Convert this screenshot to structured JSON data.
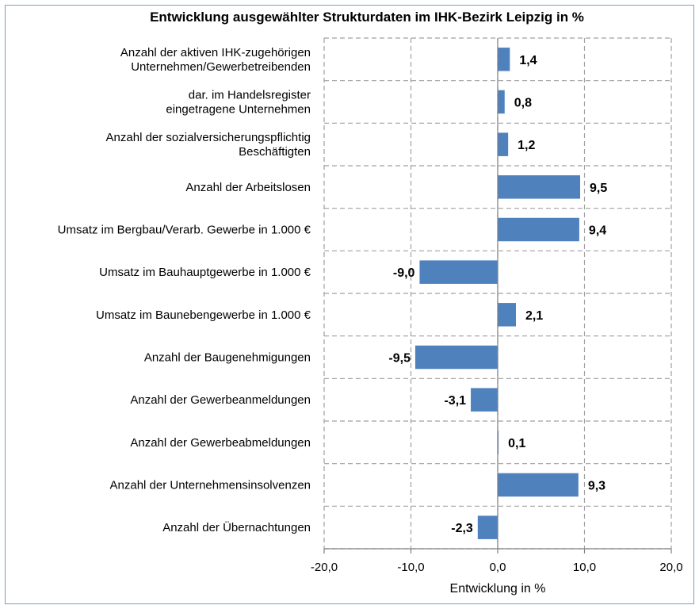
{
  "chart_data": {
    "type": "bar",
    "orientation": "horizontal",
    "title": "Entwicklung ausgewählter Strukturdaten im IHK-Bezirk Leipzig in %",
    "xlabel": "Entwicklung in %",
    "ylabel": "",
    "xlim": [
      -20,
      20
    ],
    "grid": true,
    "bar_color": "#4f81bd",
    "ticks": [
      "-20,0",
      "-10,0",
      "0,0",
      "10,0",
      "20,0"
    ],
    "categories": [
      [
        "Anzahl der aktiven IHK-zugehörigen",
        "Unternehmen/Gewerbetreibenden"
      ],
      [
        "dar. im Handelsregister",
        "eingetragene Unternehmen"
      ],
      [
        "Anzahl der sozialversicherungspflichtig",
        "Beschäftigten"
      ],
      [
        "Anzahl der Arbeitslosen"
      ],
      [
        "Umsatz im Bergbau/Verarb. Gewerbe in 1.000 €"
      ],
      [
        "Umsatz im Bauhauptgewerbe in 1.000 €"
      ],
      [
        "Umsatz im Baunebengewerbe in 1.000 €"
      ],
      [
        "Anzahl der Baugenehmigungen"
      ],
      [
        "Anzahl der Gewerbeanmeldungen"
      ],
      [
        "Anzahl der Gewerbeabmeldungen"
      ],
      [
        "Anzahl der Unternehmensinsolvenzen"
      ],
      [
        "Anzahl der Übernachtungen"
      ]
    ],
    "values": [
      1.4,
      0.8,
      1.2,
      9.5,
      9.4,
      -9.0,
      2.1,
      -9.5,
      -3.1,
      0.1,
      9.3,
      -2.3
    ],
    "value_labels": [
      "1,4",
      "0,8",
      "1,2",
      "9,5",
      "9,4",
      "-9,0",
      "2,1",
      "-9,5",
      "-3,1",
      "0,1",
      "9,3",
      "-2,3"
    ]
  }
}
